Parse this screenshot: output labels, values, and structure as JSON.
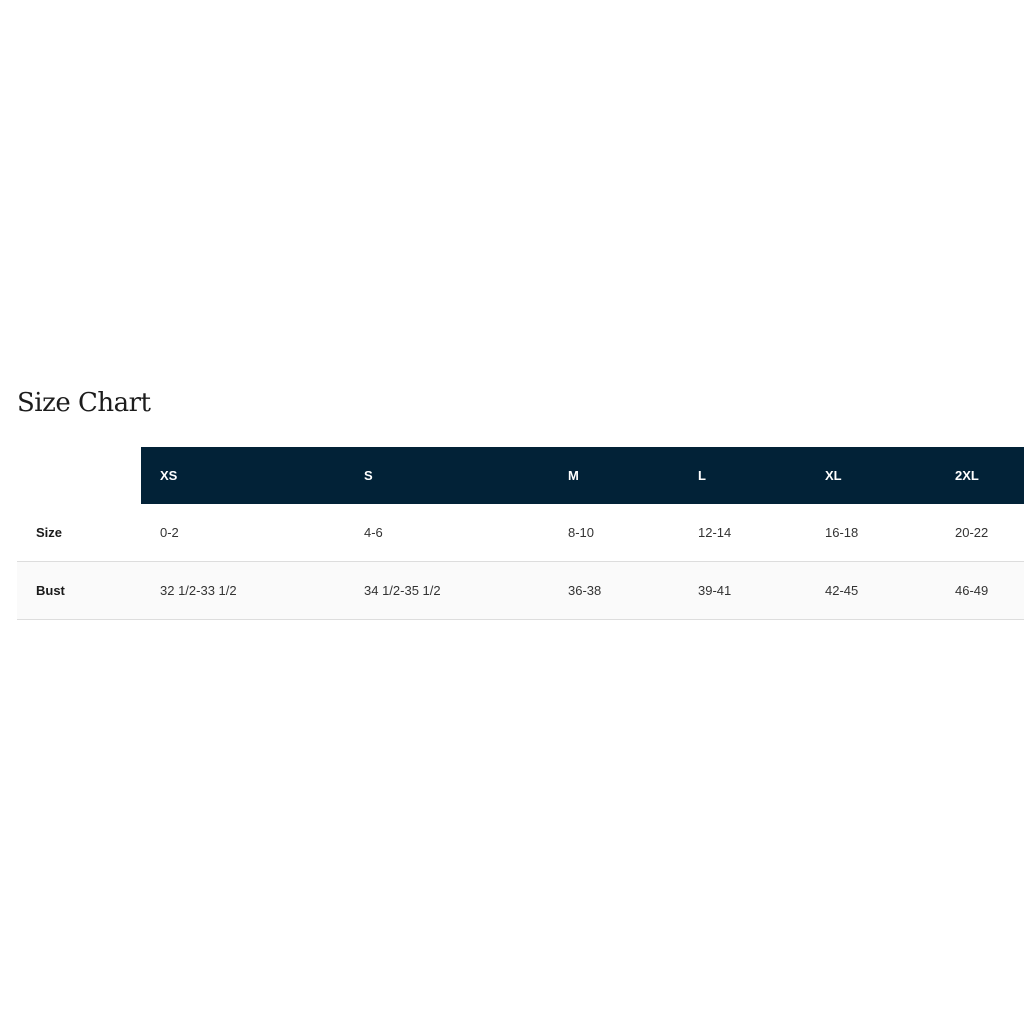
{
  "title": "Size Chart",
  "table": {
    "columns": [
      "XS",
      "S",
      "M",
      "L",
      "XL",
      "2XL"
    ],
    "rows": [
      {
        "label": "Size",
        "values": [
          "0-2",
          "4-6",
          "8-10",
          "12-14",
          "16-18",
          "20-22"
        ]
      },
      {
        "label": "Bust",
        "values": [
          "32 1/2-33 1/2",
          "34 1/2-35 1/2",
          "36-38",
          "39-41",
          "42-45",
          "46-49"
        ]
      }
    ]
  },
  "colors": {
    "header_bg": "#022237",
    "header_text": "#ffffff",
    "alt_row_bg": "#fafafa"
  }
}
